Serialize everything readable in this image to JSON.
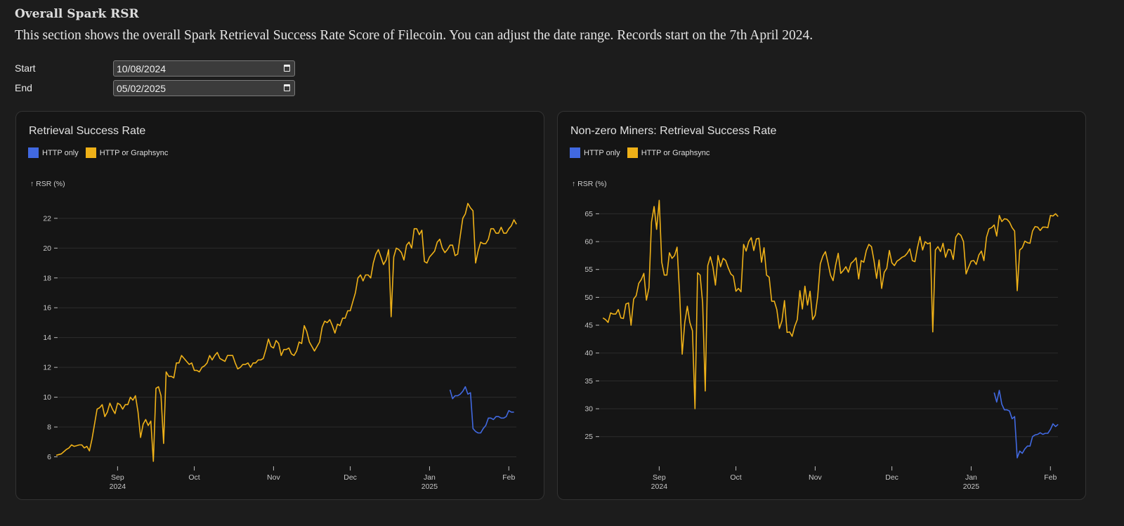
{
  "header": {
    "title": "Overall Spark RSR",
    "description": "This section shows the overall Spark Retrieval Success Rate Score of Filecoin. You can adjust the date range. Records start on the 7th April 2024."
  },
  "form": {
    "start_label": "Start",
    "start_value": "10/08/2024",
    "end_label": "End",
    "end_value": "05/02/2025"
  },
  "colors": {
    "http_only": "#4169e1",
    "http_or_graphsync": "#efb118",
    "grid": "#2c2c2c"
  },
  "chart_data": [
    {
      "type": "line",
      "title": "Retrieval Success Rate",
      "ylabel": "↑ RSR (%)",
      "x_unit": "days since 2024-08-08",
      "ylim": [
        5.6,
        23.5
      ],
      "yticks": [
        6,
        8,
        10,
        12,
        14,
        16,
        18,
        20,
        22
      ],
      "xticks": [
        {
          "day": 24,
          "label": "Sep",
          "sub": "2024"
        },
        {
          "day": 54,
          "label": "Oct"
        },
        {
          "day": 85,
          "label": "Nov"
        },
        {
          "day": 115,
          "label": "Dec"
        },
        {
          "day": 146,
          "label": "Jan",
          "sub": "2025"
        },
        {
          "day": 177,
          "label": "Feb"
        }
      ],
      "legend": [
        "HTTP only",
        "HTTP or Graphsync"
      ],
      "series": [
        {
          "name": "HTTP or Graphsync",
          "start_day": 0,
          "values": [
            6.1,
            6.15,
            6.2,
            6.35,
            6.5,
            6.6,
            6.8,
            6.7,
            6.75,
            6.8,
            6.8,
            6.6,
            6.7,
            6.4,
            7.2,
            8.2,
            9.2,
            9.3,
            9.5,
            8.7,
            9.0,
            9.6,
            9.2,
            8.9,
            9.6,
            9.5,
            9.2,
            9.5,
            9.5,
            10.0,
            9.8,
            10.1,
            9.0,
            7.3,
            8.2,
            8.5,
            8.1,
            8.4,
            5.7,
            10.6,
            10.7,
            10.1,
            6.9,
            11.7,
            11.4,
            11.4,
            11.3,
            12.3,
            12.3,
            12.8,
            12.6,
            12.4,
            12.2,
            12.3,
            11.8,
            11.8,
            11.7,
            12.0,
            12.1,
            12.3,
            12.8,
            12.5,
            12.8,
            13.0,
            12.6,
            12.5,
            12.4,
            12.8,
            12.8,
            12.8,
            12.3,
            11.9,
            12.0,
            12.2,
            12.2,
            12.3,
            12.0,
            12.3,
            12.3,
            12.5,
            12.5,
            12.6,
            13.2,
            13.9,
            13.4,
            13.3,
            13.8,
            13.6,
            12.8,
            13.2,
            13.2,
            13.3,
            12.9,
            12.8,
            13.1,
            13.7,
            13.6,
            14.8,
            14.4,
            13.7,
            13.4,
            13.1,
            13.4,
            13.7,
            14.7,
            15.1,
            15.0,
            15.2,
            14.8,
            14.3,
            14.9,
            14.8,
            15.3,
            15.3,
            15.8,
            15.8,
            16.4,
            17.0,
            18.0,
            18.2,
            17.8,
            18.2,
            18.2,
            18.0,
            19.0,
            19.6,
            19.9,
            19.4,
            18.9,
            19.2,
            19.9,
            15.4,
            19.4,
            20.0,
            19.9,
            19.7,
            19.2,
            20.2,
            20.4,
            20.0,
            21.3,
            21.3,
            20.9,
            21.2,
            19.1,
            19.0,
            19.4,
            19.6,
            19.8,
            20.4,
            20.6,
            20.0,
            19.7,
            19.9,
            20.2,
            20.2,
            19.5,
            19.6,
            20.8,
            22.0,
            22.3,
            23.0,
            22.7,
            22.5,
            19.0,
            19.8,
            20.4,
            20.3,
            20.3,
            20.6,
            21.3,
            21.3,
            21.0,
            21.0,
            21.4,
            21.0,
            21.0,
            21.3,
            21.5,
            21.9,
            21.6
          ]
        },
        {
          "name": "HTTP only",
          "start_day": 154,
          "values": [
            10.5,
            9.9,
            10.1,
            10.1,
            10.2,
            10.4,
            10.7,
            10.2,
            10.3,
            7.9,
            7.7,
            7.6,
            7.6,
            7.9,
            8.1,
            8.6,
            8.6,
            8.5,
            8.7,
            8.7,
            8.6,
            8.6,
            8.7,
            9.1,
            9.0,
            9.0
          ]
        }
      ]
    },
    {
      "type": "line",
      "title": "Non-zero Miners: Retrieval Success Rate",
      "ylabel": "↑ RSR (%)",
      "x_unit": "days since 2024-08-08",
      "ylim": [
        20.3,
        68.2
      ],
      "yticks": [
        25,
        30,
        35,
        40,
        45,
        50,
        55,
        60,
        65
      ],
      "xticks": [
        {
          "day": 24,
          "label": "Sep",
          "sub": "2024"
        },
        {
          "day": 54,
          "label": "Oct"
        },
        {
          "day": 85,
          "label": "Nov"
        },
        {
          "day": 115,
          "label": "Dec"
        },
        {
          "day": 146,
          "label": "Jan",
          "sub": "2025"
        },
        {
          "day": 177,
          "label": "Feb"
        }
      ],
      "legend": [
        "HTTP only",
        "HTTP or Graphsync"
      ],
      "series": [
        {
          "name": "HTTP or Graphsync",
          "start_day": 2,
          "values": [
            46.3,
            46,
            45.5,
            47.2,
            47,
            47,
            47.8,
            46.3,
            46.2,
            48.8,
            49,
            45,
            49.7,
            50.3,
            52.5,
            53.2,
            54.3,
            49.5,
            51.7,
            63.5,
            66.3,
            62.2,
            67.4,
            56.3,
            54,
            54,
            58,
            57,
            57.5,
            59,
            50.5,
            39.8,
            45.5,
            48.4,
            45.5,
            44,
            30,
            54.4,
            54,
            49,
            33.2,
            55.7,
            57.3,
            55.5,
            52.2,
            57.5,
            55.5,
            57,
            56.6,
            55.3,
            54.2,
            53.8,
            51.1,
            51.6,
            51,
            59.5,
            58.3,
            60,
            60.7,
            58.4,
            60.5,
            60.6,
            56.3,
            58.9,
            54,
            53.6,
            49.3,
            49.3,
            47.8,
            44.4,
            45.8,
            49.4,
            43.7,
            43.8,
            43,
            44.8,
            46,
            51.2,
            47.9,
            52,
            48.6,
            51.1,
            46,
            46.8,
            50.2,
            56,
            57.4,
            58.2,
            56.2,
            54,
            53,
            55.8,
            57.9,
            54.3,
            54.8,
            55.5,
            54.5,
            56.1,
            56.5,
            57.1,
            53.3,
            56.6,
            56.3,
            58.4,
            59.5,
            59.1,
            56.6,
            53.4,
            56.7,
            51.6,
            54.5,
            55.2,
            58.4,
            56.2,
            55.7,
            56.5,
            56.8,
            57.2,
            57.4,
            57.9,
            58.7,
            56.6,
            56.4,
            58.9,
            60.9,
            58.5,
            60,
            59.6,
            59.8,
            43.8,
            58.5,
            59.1,
            58.2,
            59.7,
            57.2,
            58.6,
            58.5,
            56.8,
            60.8,
            61.5,
            61.1,
            60,
            54.2,
            55.4,
            56.5,
            56.6,
            55.9,
            57.6,
            58.3,
            56.6,
            60.8,
            62.3,
            62.5,
            63,
            61,
            64.7,
            63.6,
            64.1,
            64,
            63.5,
            62.5,
            61.9,
            51.2,
            58.5,
            58.9,
            60.1,
            59.8,
            59.7,
            61.9,
            62.7,
            62.6,
            62,
            62.6,
            62.6,
            62.5,
            64.7,
            64.6,
            65,
            64.5
          ]
        },
        {
          "name": "HTTP only",
          "start_day": 155,
          "values": [
            32.9,
            31.2,
            33.3,
            30.8,
            29.8,
            29.8,
            29.6,
            28.2,
            28.6,
            21.2,
            22.4,
            22,
            22.8,
            23.3,
            23.3,
            25,
            25.3,
            25.4,
            25.7,
            25.4,
            25.6,
            25.6,
            26.3,
            27.3,
            26.8,
            27.2
          ]
        }
      ]
    }
  ]
}
